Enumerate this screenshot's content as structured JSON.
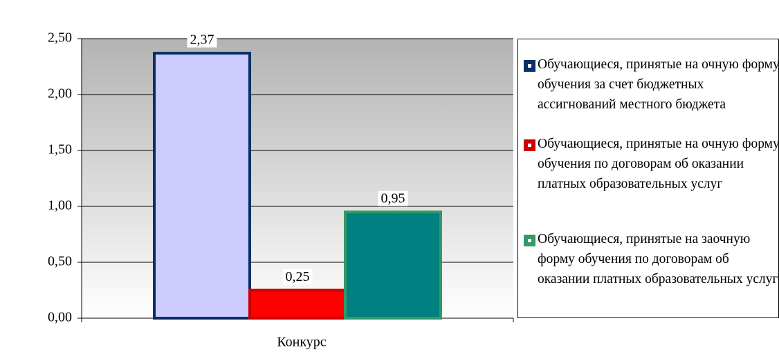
{
  "chart_data": {
    "type": "bar",
    "categories": [
      "Конкурс"
    ],
    "series": [
      {
        "name": "Обучающиеся, принятые на очную форму обучения за счет бюджетных ассигнований местного бюджета",
        "color": "#ccccff",
        "edge_color": "#0a2f66",
        "values": [
          2.37
        ],
        "value_labels": [
          "2,37"
        ]
      },
      {
        "name": "Обучающиеся, принятые на очную форму обучения по договорам об оказании платных образовательных услуг",
        "color": "#ff0000",
        "edge_color": "#cc0000",
        "values": [
          0.25
        ],
        "value_labels": [
          "0,25"
        ]
      },
      {
        "name": "Обучающиеся, принятые на заочную форму обучения по договорам об оказании платных образовательных услуг",
        "color": "#008080",
        "edge_color": "#339966",
        "values": [
          0.95
        ],
        "value_labels": [
          "0,95"
        ]
      }
    ],
    "ylim": [
      0,
      2.5
    ],
    "yticks": [
      {
        "value": 0,
        "label": "0,00"
      },
      {
        "value": 0.5,
        "label": "0,50"
      },
      {
        "value": 1,
        "label": "1,00"
      },
      {
        "value": 1.5,
        "label": "1,50"
      },
      {
        "value": 2,
        "label": "2,00"
      },
      {
        "value": 2.5,
        "label": "2,50"
      }
    ],
    "grid": true,
    "legend": "right"
  }
}
